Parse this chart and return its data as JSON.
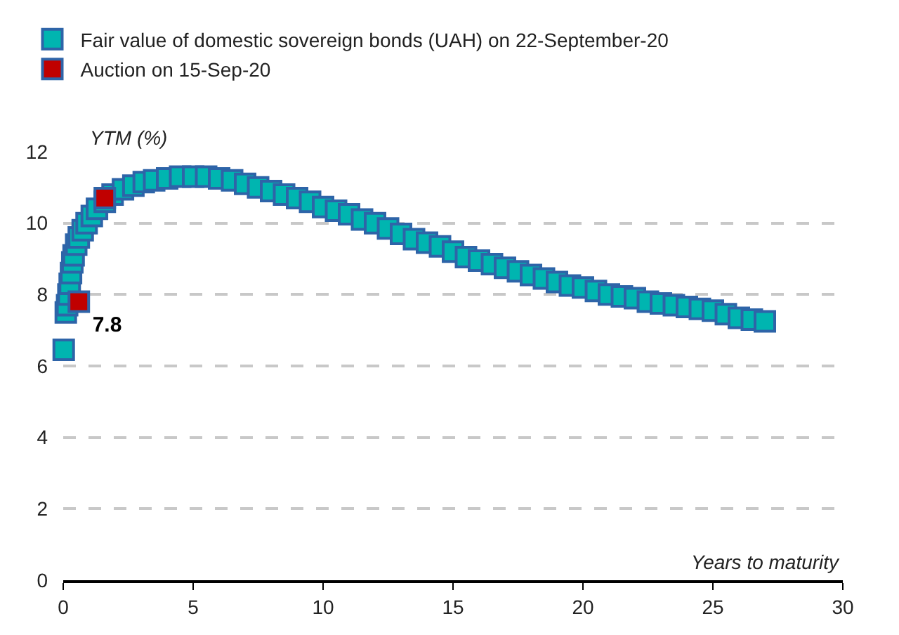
{
  "chart_data": {
    "type": "scatter",
    "xlabel": "Years to maturity",
    "ylabel": "YTM (%)",
    "xlim": [
      0,
      30
    ],
    "xticks": [
      0,
      5,
      10,
      15,
      20,
      25,
      30
    ],
    "ylim": [
      0,
      12
    ],
    "yticks": [
      0,
      2,
      4,
      6,
      8,
      10,
      12
    ],
    "grid": "y",
    "legend": "top left",
    "marker": "square",
    "series": [
      {
        "name": "Fair value of domestic sovereign bonds (UAH) on 22-September-20",
        "color": "#00b5b0",
        "x": [
          0.02,
          0.1,
          0.15,
          0.2,
          0.25,
          0.3,
          0.35,
          0.4,
          0.5,
          0.6,
          0.75,
          0.9,
          1.1,
          1.3,
          1.6,
          1.9,
          2.3,
          2.7,
          3.1,
          3.5,
          4.0,
          4.5,
          5.0,
          5.5,
          6.0,
          6.5,
          7.0,
          7.5,
          8.0,
          8.5,
          9.0,
          9.5,
          10.0,
          10.5,
          11.0,
          11.5,
          12.0,
          12.5,
          13.0,
          13.5,
          14.0,
          14.5,
          15.0,
          15.5,
          16.0,
          16.5,
          17.0,
          17.5,
          18.0,
          18.5,
          19.0,
          19.5,
          20.0,
          20.5,
          21.0,
          21.5,
          22.0,
          22.5,
          23.0,
          23.5,
          24.0,
          24.5,
          25.0,
          25.5,
          26.0,
          26.5,
          27.0
        ],
        "values": [
          6.45,
          7.5,
          7.7,
          8.0,
          8.3,
          8.6,
          8.9,
          9.1,
          9.4,
          9.6,
          9.8,
          10.0,
          10.2,
          10.4,
          10.6,
          10.8,
          10.95,
          11.05,
          11.15,
          11.2,
          11.25,
          11.3,
          11.3,
          11.3,
          11.25,
          11.2,
          11.1,
          11.0,
          10.9,
          10.8,
          10.7,
          10.6,
          10.45,
          10.35,
          10.25,
          10.1,
          10.0,
          9.85,
          9.7,
          9.55,
          9.45,
          9.35,
          9.2,
          9.05,
          8.95,
          8.85,
          8.75,
          8.65,
          8.55,
          8.45,
          8.35,
          8.25,
          8.2,
          8.1,
          8.0,
          7.95,
          7.9,
          7.8,
          7.75,
          7.7,
          7.65,
          7.6,
          7.55,
          7.45,
          7.35,
          7.3,
          7.25
        ]
      },
      {
        "name": "Auction on 15-Sep-20",
        "color": "#c00000",
        "x": [
          0.6,
          1.6
        ],
        "values": [
          7.8,
          10.7
        ],
        "value_labels": [
          "7.8",
          null
        ]
      }
    ]
  }
}
